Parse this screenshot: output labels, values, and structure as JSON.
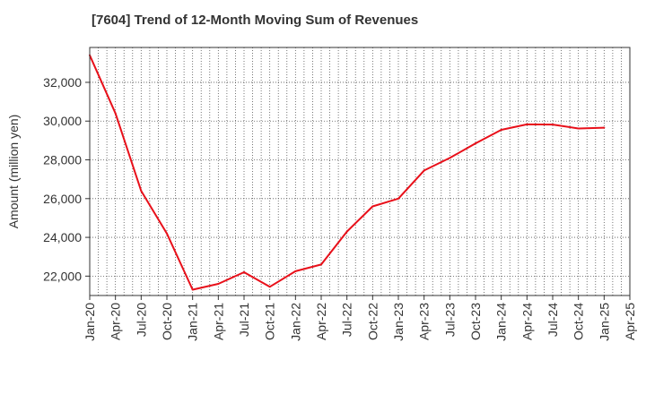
{
  "chart_data": {
    "type": "line",
    "title": "[7604]  Trend of 12-Month Moving Sum of Revenues",
    "xlabel": "",
    "ylabel": "Amount (million yen)",
    "ylim": [
      21000,
      33800
    ],
    "yticks": [
      22000,
      24000,
      26000,
      28000,
      30000,
      32000
    ],
    "ytick_labels": [
      "22,000",
      "24,000",
      "26,000",
      "28,000",
      "30,000",
      "32,000"
    ],
    "xtick_labels": [
      "Jan-20",
      "Apr-20",
      "Jul-20",
      "Oct-20",
      "Jan-21",
      "Apr-21",
      "Jul-21",
      "Oct-21",
      "Jan-22",
      "Apr-22",
      "Jul-22",
      "Oct-22",
      "Jan-23",
      "Apr-23",
      "Jul-23",
      "Oct-23",
      "Jan-24",
      "Apr-24",
      "Jul-24",
      "Oct-24",
      "Jan-25",
      "Apr-25"
    ],
    "grid": true,
    "colors": {
      "series": "#e8101a",
      "grid": "#555555",
      "frame": "#333333"
    },
    "series": [
      {
        "x": [
          "Jan-20",
          "Apr-20",
          "Jul-20",
          "Oct-20",
          "Jan-21",
          "Apr-21",
          "Jul-21",
          "Oct-21",
          "Jan-22",
          "Apr-22",
          "Jul-22",
          "Oct-22",
          "Jan-23",
          "Apr-23",
          "Jul-23",
          "Oct-23",
          "Jan-24",
          "Apr-24",
          "Jul-24",
          "Oct-24",
          "Jan-25"
        ],
        "values": [
          33400,
          30400,
          26400,
          24200,
          21300,
          21600,
          22200,
          21450,
          22250,
          22600,
          24300,
          25600,
          26000,
          27450,
          28100,
          28850,
          29550,
          29830,
          29820,
          29620,
          29660
        ]
      }
    ]
  }
}
